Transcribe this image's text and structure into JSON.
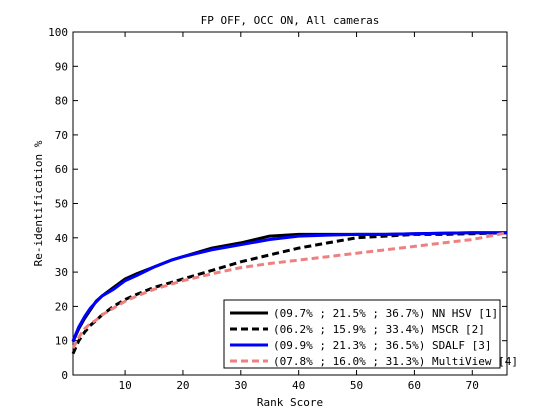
{
  "chart_data": {
    "type": "line",
    "title": "FP OFF, OCC ON, All cameras",
    "xlabel": "Rank Score",
    "ylabel": "Re-identification %",
    "xlim": [
      1,
      76
    ],
    "ylim": [
      0,
      100
    ],
    "xticks": [
      10,
      20,
      30,
      40,
      50,
      60,
      70
    ],
    "yticks": [
      0,
      10,
      20,
      30,
      40,
      50,
      60,
      70,
      80,
      90,
      100
    ],
    "grid": false,
    "legend_position": "bottom-right",
    "series": [
      {
        "name": "(09.7% ; 21.5% ; 36.7%) NN HSV [1]",
        "color": "#000000",
        "dash": "solid",
        "x": [
          1,
          2,
          3,
          4,
          5,
          6,
          8,
          10,
          12,
          15,
          18,
          20,
          25,
          30,
          35,
          40,
          45,
          50,
          55,
          60,
          65,
          70,
          76
        ],
        "y": [
          9.7,
          13.5,
          16.5,
          19.0,
          21.5,
          23.0,
          25.5,
          28.0,
          29.5,
          31.5,
          33.5,
          34.5,
          37.0,
          38.5,
          40.5,
          41.0,
          41.0,
          41.0,
          41.0,
          41.2,
          41.3,
          41.5,
          41.5
        ]
      },
      {
        "name": "(06.2% ; 15.9% ; 33.4%) MSCR [2]",
        "color": "#000000",
        "dash": "dashed",
        "x": [
          1,
          2,
          3,
          4,
          5,
          6,
          8,
          10,
          12,
          15,
          18,
          20,
          25,
          30,
          35,
          40,
          45,
          50,
          55,
          60,
          65,
          70,
          76
        ],
        "y": [
          6.2,
          10.0,
          12.5,
          14.5,
          15.9,
          17.5,
          20.0,
          22.0,
          23.5,
          25.5,
          27.0,
          28.0,
          30.5,
          33.0,
          35.0,
          37.0,
          38.5,
          40.0,
          40.5,
          41.0,
          41.0,
          41.2,
          41.5
        ]
      },
      {
        "name": "(09.9% ; 21.3% ; 36.5%) SDALF [3]",
        "color": "#0000ff",
        "dash": "solid",
        "x": [
          1,
          2,
          3,
          4,
          5,
          6,
          8,
          10,
          12,
          15,
          18,
          20,
          25,
          30,
          35,
          40,
          45,
          50,
          55,
          60,
          65,
          70,
          76
        ],
        "y": [
          9.9,
          14.0,
          17.0,
          19.5,
          21.3,
          23.0,
          25.0,
          27.5,
          29.0,
          31.5,
          33.5,
          34.5,
          36.5,
          38.0,
          39.5,
          40.5,
          40.8,
          41.0,
          41.0,
          41.2,
          41.3,
          41.5,
          41.5
        ]
      },
      {
        "name": "(07.8% ; 16.0% ; 31.3%) MultiView [4]",
        "color": "#f08080",
        "dash": "dashed",
        "x": [
          1,
          2,
          3,
          4,
          5,
          6,
          8,
          10,
          12,
          15,
          18,
          20,
          25,
          30,
          35,
          40,
          45,
          50,
          55,
          60,
          65,
          70,
          76
        ],
        "y": [
          7.8,
          11.0,
          13.5,
          15.0,
          16.0,
          17.5,
          19.5,
          21.5,
          23.0,
          25.0,
          26.5,
          27.5,
          29.5,
          31.3,
          32.5,
          33.5,
          34.5,
          35.5,
          36.5,
          37.5,
          38.5,
          39.5,
          41.5
        ]
      }
    ]
  }
}
